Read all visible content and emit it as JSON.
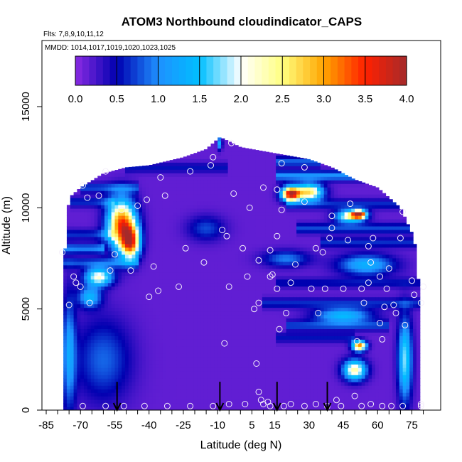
{
  "chart_data": {
    "type": "heatmap",
    "title": "ATOM3 Northbound cloudindicator_CAPS",
    "flights_label": "Flts: 7,8,9,10,11,12",
    "dates_label": "MMDD: 1014,1017,1019,1020,1023,1025",
    "xlabel": "Latitude (deg N)",
    "ylabel": "Altitude (m)",
    "xlim": [
      -85,
      82
    ],
    "ylim": [
      0,
      17500
    ],
    "x_ticks": [
      -85,
      -70,
      -55,
      -40,
      -25,
      -10,
      5,
      15,
      30,
      45,
      60,
      75
    ],
    "y_ticks": [
      0,
      5000,
      10000,
      15000
    ],
    "colorbar": {
      "range": [
        0,
        4
      ],
      "ticks": [
        "0.0",
        "0.5",
        "1.0",
        "1.5",
        "2.0",
        "2.5",
        "3.0",
        "3.5",
        "4.0"
      ],
      "colors": [
        "#8a2be2",
        "#0000b0",
        "#1e90ff",
        "#00bfff",
        "#ffffff",
        "#ffff80",
        "#ffa500",
        "#ff2000",
        "#a52a2a"
      ]
    },
    "arrows_lat": [
      -54,
      -9,
      16,
      38
    ],
    "envelope": [
      [
        -78,
        0,
        6200
      ],
      [
        -75,
        0,
        10500
      ],
      [
        -70,
        0,
        11000
      ],
      [
        -60,
        0,
        11700
      ],
      [
        -50,
        0,
        12000
      ],
      [
        -40,
        0,
        12100
      ],
      [
        -25,
        0,
        12500
      ],
      [
        -15,
        0,
        12900
      ],
      [
        -9,
        0,
        13500
      ],
      [
        0,
        0,
        13000
      ],
      [
        10,
        0,
        12800
      ],
      [
        20,
        0,
        12600
      ],
      [
        30,
        0,
        12400
      ],
      [
        40,
        0,
        12000
      ],
      [
        50,
        0,
        11400
      ],
      [
        60,
        0,
        11000
      ],
      [
        70,
        0,
        10000
      ],
      [
        76,
        0,
        8500
      ],
      [
        78,
        0,
        6200
      ]
    ],
    "features": [
      {
        "lat": -52,
        "alt": 9200,
        "value": 3.2,
        "slat": 6,
        "salt": 1200
      },
      {
        "lat": -48,
        "alt": 8300,
        "value": 2.8,
        "slat": 4,
        "salt": 800
      },
      {
        "lat": -62,
        "alt": 6600,
        "value": 2.0,
        "slat": 6,
        "salt": 450
      },
      {
        "lat": -66,
        "alt": 5600,
        "value": 1.2,
        "slat": 5,
        "salt": 500
      },
      {
        "lat": -60,
        "alt": 2500,
        "value": 0.7,
        "slat": 12,
        "salt": 2000
      },
      {
        "lat": -75,
        "alt": 2800,
        "value": 1.0,
        "slat": 3,
        "salt": 2800
      },
      {
        "lat": 22,
        "alt": 10700,
        "value": 3.6,
        "slat": 4,
        "salt": 350
      },
      {
        "lat": 30,
        "alt": 10800,
        "value": 2.5,
        "slat": 6,
        "salt": 400
      },
      {
        "lat": 52,
        "alt": 9700,
        "value": 3.3,
        "slat": 3,
        "salt": 200
      },
      {
        "lat": 48,
        "alt": 9600,
        "value": 2.2,
        "slat": 6,
        "salt": 300
      },
      {
        "lat": 52,
        "alt": 3200,
        "value": 3.0,
        "slat": 3,
        "salt": 250
      },
      {
        "lat": 50,
        "alt": 2000,
        "value": 2.2,
        "slat": 5,
        "salt": 500
      },
      {
        "lat": 72,
        "alt": 2500,
        "value": 1.6,
        "slat": 3,
        "salt": 2000
      },
      {
        "lat": 45,
        "alt": 4700,
        "value": 1.3,
        "slat": 12,
        "salt": 350
      },
      {
        "lat": 55,
        "alt": 7200,
        "value": 1.2,
        "slat": 12,
        "salt": 500
      },
      {
        "lat": 20,
        "alt": 7500,
        "value": 0.8,
        "slat": 10,
        "salt": 400
      },
      {
        "lat": -15,
        "alt": 9000,
        "value": 0.6,
        "slat": 8,
        "salt": 600
      },
      {
        "lat": -9,
        "alt": 13200,
        "value": 1.2,
        "slat": 1,
        "salt": 300
      }
    ],
    "bands": [
      {
        "alt": 12000,
        "lat0": -50,
        "lat1": -5,
        "value": 0.4
      },
      {
        "alt": 11000,
        "lat0": -70,
        "lat1": -45,
        "value": 0.6
      },
      {
        "alt": 10300,
        "lat0": -75,
        "lat1": -55,
        "value": 0.5
      },
      {
        "alt": 8700,
        "lat0": -80,
        "lat1": -55,
        "value": 0.5
      },
      {
        "alt": 8000,
        "lat0": -80,
        "lat1": -60,
        "value": 0.8
      },
      {
        "alt": 7300,
        "lat0": -78,
        "lat1": -45,
        "value": 0.6
      },
      {
        "alt": 12300,
        "lat0": 15,
        "lat1": 35,
        "value": 0.7
      },
      {
        "alt": 11600,
        "lat0": 15,
        "lat1": 55,
        "value": 0.9
      },
      {
        "alt": 10200,
        "lat0": 20,
        "lat1": 75,
        "value": 0.5
      },
      {
        "alt": 9000,
        "lat0": 25,
        "lat1": 78,
        "value": 0.6
      },
      {
        "alt": 8300,
        "lat0": 35,
        "lat1": 78,
        "value": 0.5
      },
      {
        "alt": 6300,
        "lat0": 15,
        "lat1": 78,
        "value": 0.4
      },
      {
        "alt": 5300,
        "lat0": 10,
        "lat1": 78,
        "value": 0.5
      },
      {
        "alt": 4200,
        "lat0": 20,
        "lat1": 65,
        "value": 0.6
      },
      {
        "alt": 3600,
        "lat0": 15,
        "lat1": 50,
        "value": 0.4
      }
    ],
    "obs_points": [
      [
        -78,
        7800
      ],
      [
        -75,
        5200
      ],
      [
        -73,
        6600
      ],
      [
        -72,
        6300
      ],
      [
        -70,
        6100
      ],
      [
        -66,
        5300
      ],
      [
        -69,
        11100
      ],
      [
        -67,
        10500
      ],
      [
        -62,
        10600
      ],
      [
        -59,
        11800
      ],
      [
        -57,
        6900
      ],
      [
        -55,
        7700
      ],
      [
        -52,
        9900
      ],
      [
        -48,
        6900
      ],
      [
        -45,
        10100
      ],
      [
        -41,
        10400
      ],
      [
        -40,
        5600
      ],
      [
        -38,
        7100
      ],
      [
        -36,
        5900
      ],
      [
        -35,
        11500
      ],
      [
        -33,
        10600
      ],
      [
        -27,
        6100
      ],
      [
        -24,
        8000
      ],
      [
        -22,
        11800
      ],
      [
        -16,
        7300
      ],
      [
        -13,
        12100
      ],
      [
        -12,
        12500
      ],
      [
        -8,
        8900
      ],
      [
        -6,
        8600
      ],
      [
        -5,
        6100
      ],
      [
        -4,
        13200
      ],
      [
        -3,
        10700
      ],
      [
        1,
        8000
      ],
      [
        3,
        6600
      ],
      [
        4,
        10000
      ],
      [
        6,
        5000
      ],
      [
        8,
        5300
      ],
      [
        8,
        7400
      ],
      [
        10,
        11000
      ],
      [
        13,
        7900
      ],
      [
        13,
        6600
      ],
      [
        14,
        6700
      ],
      [
        16,
        6000
      ],
      [
        16,
        8600
      ],
      [
        16,
        10900
      ],
      [
        17,
        4000
      ],
      [
        18,
        12200
      ],
      [
        18,
        9900
      ],
      [
        20,
        4800
      ],
      [
        22,
        6300
      ],
      [
        24,
        7200
      ],
      [
        28,
        12000
      ],
      [
        28,
        10300
      ],
      [
        31,
        6000
      ],
      [
        33,
        8000
      ],
      [
        34,
        4800
      ],
      [
        36,
        7800
      ],
      [
        37,
        6000
      ],
      [
        39,
        8500
      ],
      [
        40,
        9000
      ],
      [
        40,
        9600
      ],
      [
        45,
        6000
      ],
      [
        47,
        8400
      ],
      [
        48,
        10200
      ],
      [
        51,
        3400
      ],
      [
        53,
        6000
      ],
      [
        54,
        5300
      ],
      [
        56,
        6300
      ],
      [
        56,
        8100
      ],
      [
        57,
        7300
      ],
      [
        58,
        8500
      ],
      [
        61,
        6600
      ],
      [
        61,
        4300
      ],
      [
        62,
        3500
      ],
      [
        63,
        5100
      ],
      [
        64,
        6000
      ],
      [
        65,
        7000
      ],
      [
        67,
        5200
      ],
      [
        68,
        4800
      ],
      [
        70,
        8500
      ],
      [
        71,
        9800
      ],
      [
        72,
        4200
      ],
      [
        75,
        6400
      ],
      [
        76,
        5700
      ],
      [
        79,
        5300
      ],
      [
        80,
        6100
      ],
      [
        -69,
        200
      ],
      [
        -59,
        200
      ],
      [
        -51,
        200
      ],
      [
        -42,
        200
      ],
      [
        -32,
        200
      ],
      [
        -22,
        200
      ],
      [
        -12,
        200
      ],
      [
        -7,
        3300
      ],
      [
        -5,
        300
      ],
      [
        2,
        300
      ],
      [
        7,
        2300
      ],
      [
        8,
        900
      ],
      [
        9,
        500
      ],
      [
        10,
        300
      ],
      [
        12,
        400
      ],
      [
        13,
        200
      ],
      [
        19,
        200
      ],
      [
        22,
        300
      ],
      [
        28,
        200
      ],
      [
        33,
        300
      ],
      [
        38,
        200
      ],
      [
        42,
        500
      ],
      [
        44,
        200
      ],
      [
        50,
        700
      ],
      [
        53,
        200
      ],
      [
        57,
        300
      ],
      [
        62,
        200
      ],
      [
        66,
        200
      ],
      [
        71,
        200
      ],
      [
        79,
        300
      ],
      [
        79,
        200
      ]
    ]
  }
}
